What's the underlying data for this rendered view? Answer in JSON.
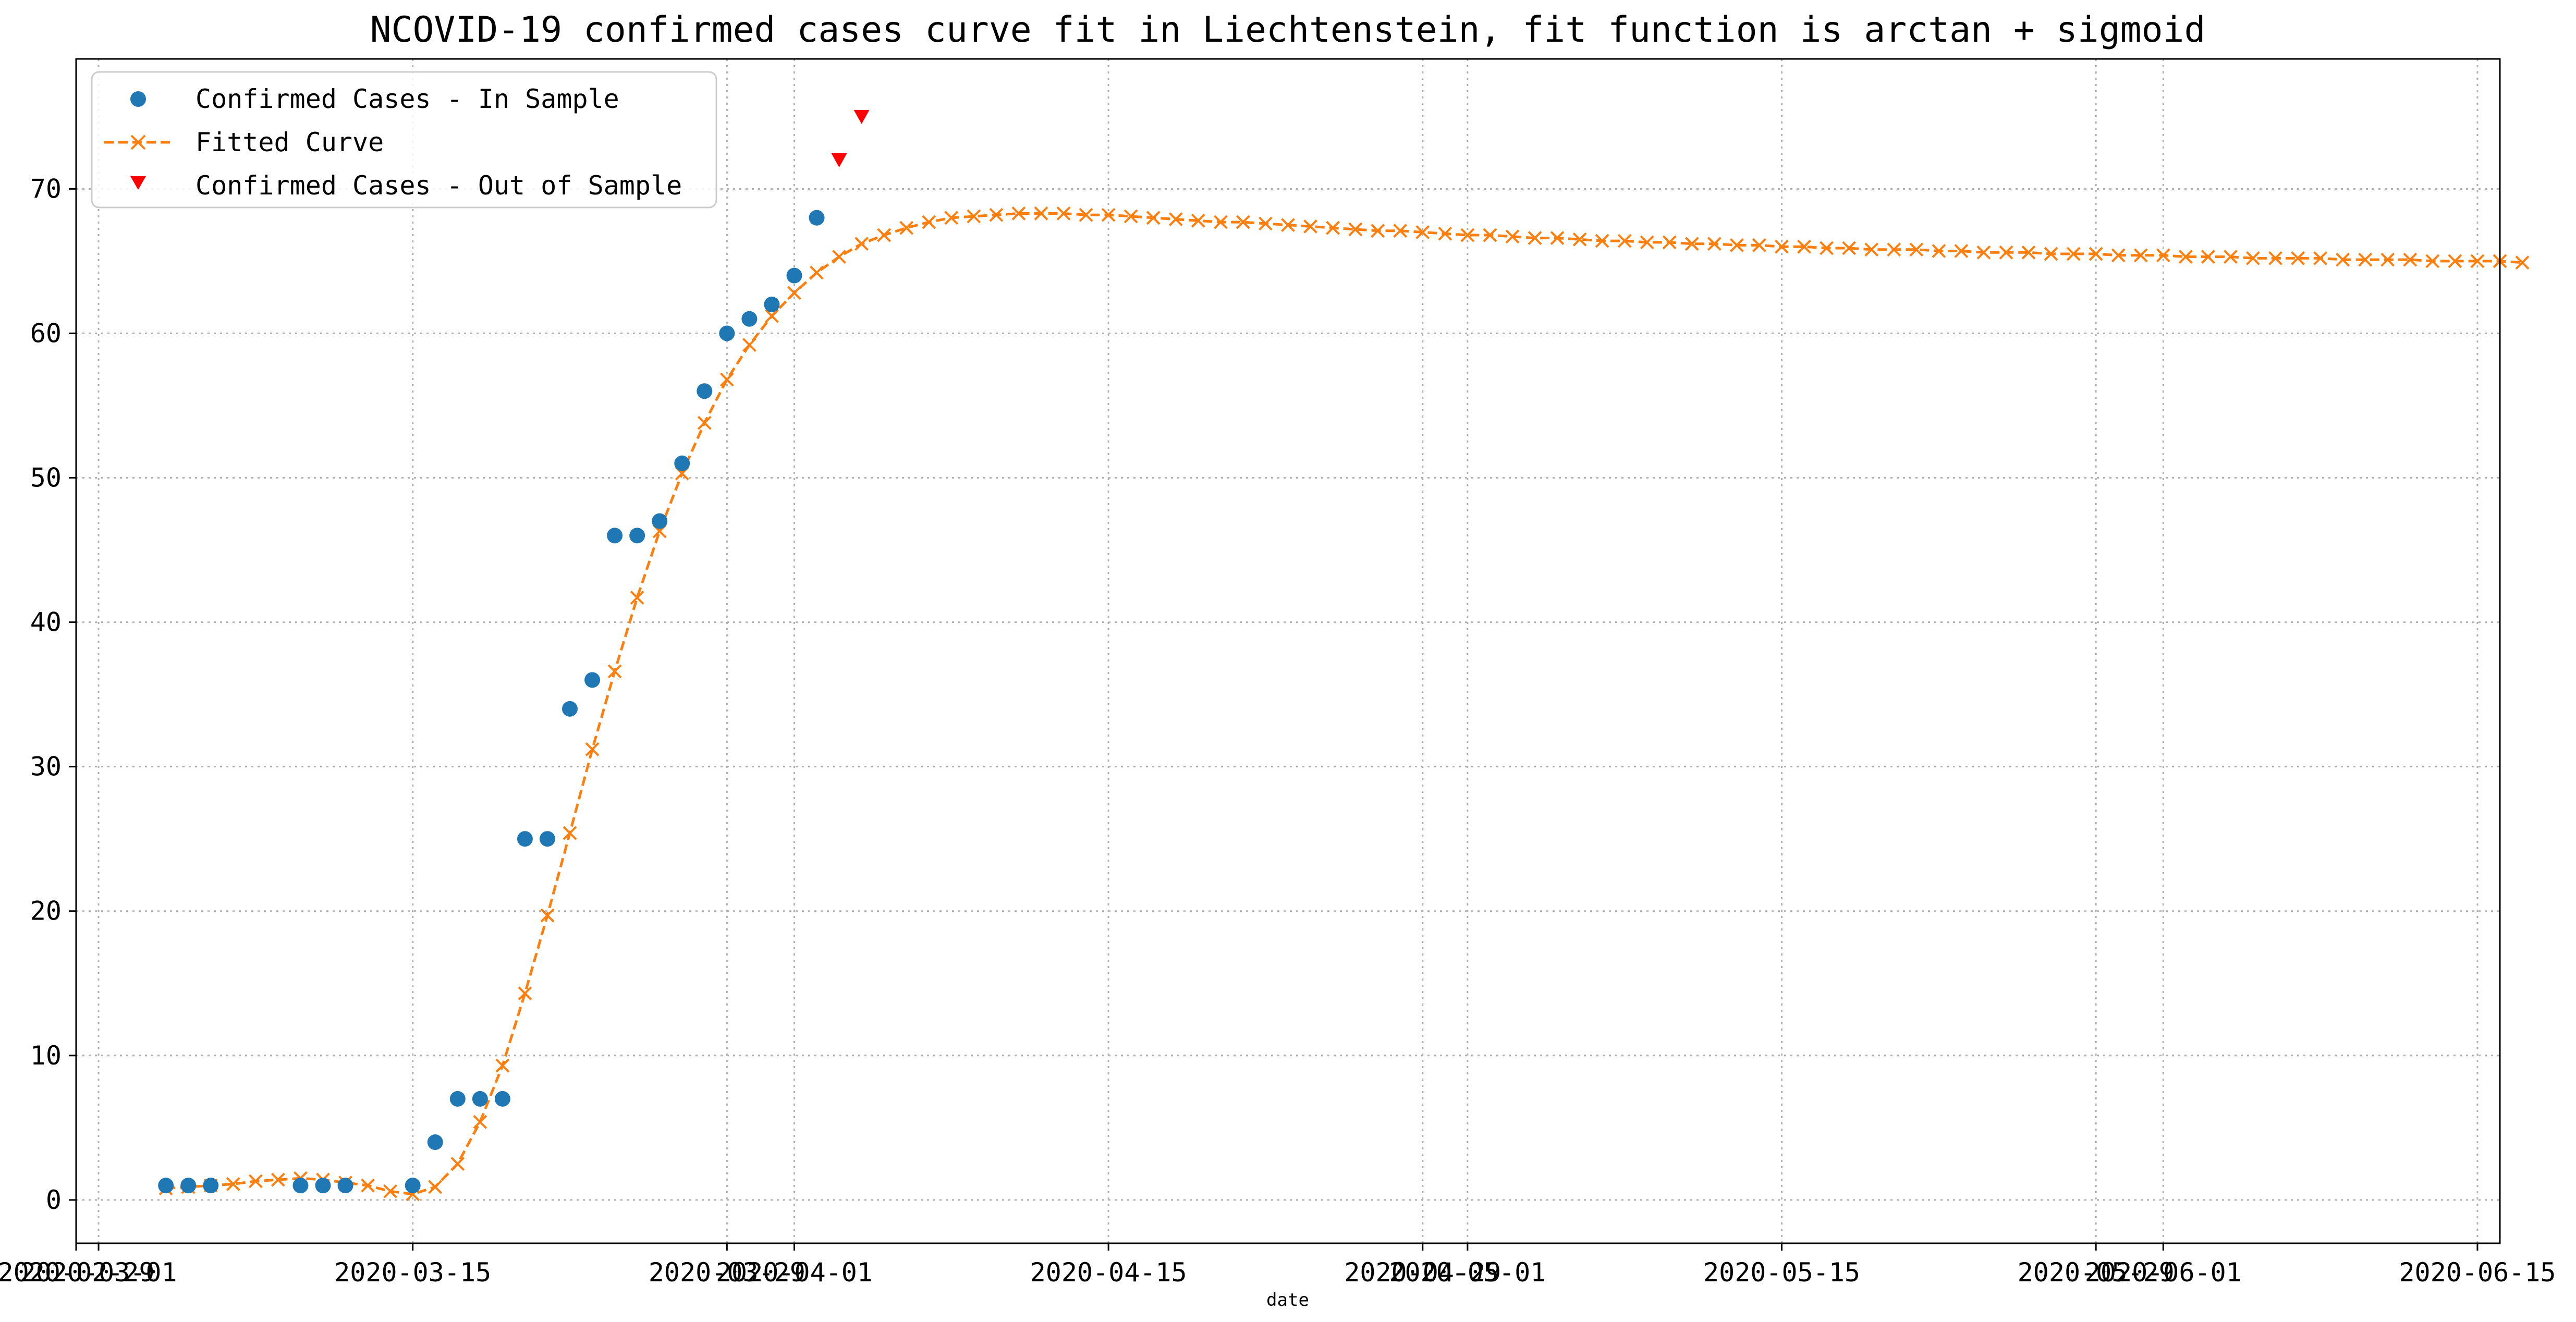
{
  "chart_data": {
    "type": "line",
    "title": "NCOVID-19 confirmed cases curve fit in Liechtenstein, fit function is arctan + sigmoid",
    "xlabel": "date",
    "ylabel": "",
    "grid": true,
    "legend_position": "top-left",
    "ylim": [
      -3,
      79
    ],
    "xlim": [
      "2020-02-29",
      "2020-06-16"
    ],
    "y_ticks": [
      0,
      10,
      20,
      30,
      40,
      50,
      60,
      70
    ],
    "x_ticks": [
      {
        "date": "2020-02-29",
        "label": "2020-02-29"
      },
      {
        "date": "2020-03-01",
        "label": "2020-03-01"
      },
      {
        "date": "2020-03-15",
        "label": "2020-03-15"
      },
      {
        "date": "2020-03-29",
        "label": "2020-03-29"
      },
      {
        "date": "2020-04-01",
        "label": "2020-04-01"
      },
      {
        "date": "2020-04-15",
        "label": "2020-04-15"
      },
      {
        "date": "2020-04-29",
        "label": "2020-04-29"
      },
      {
        "date": "2020-05-01",
        "label": "2020-05-01"
      },
      {
        "date": "2020-05-15",
        "label": "2020-05-15"
      },
      {
        "date": "2020-05-29",
        "label": "2020-05-29"
      },
      {
        "date": "2020-06-01",
        "label": "2020-06-01"
      },
      {
        "date": "2020-06-15",
        "label": "2020-06-15"
      }
    ],
    "series": [
      {
        "name": "Confirmed Cases - In Sample",
        "style": "scatter",
        "marker": "circle",
        "color": "#1f77b4",
        "points": [
          [
            "2020-03-04",
            1
          ],
          [
            "2020-03-05",
            1
          ],
          [
            "2020-03-06",
            1
          ],
          [
            "2020-03-10",
            1
          ],
          [
            "2020-03-11",
            1
          ],
          [
            "2020-03-12",
            1
          ],
          [
            "2020-03-15",
            1
          ],
          [
            "2020-03-16",
            4
          ],
          [
            "2020-03-17",
            7
          ],
          [
            "2020-03-18",
            7
          ],
          [
            "2020-03-19",
            7
          ],
          [
            "2020-03-20",
            25
          ],
          [
            "2020-03-21",
            25
          ],
          [
            "2020-03-22",
            34
          ],
          [
            "2020-03-23",
            36
          ],
          [
            "2020-03-24",
            46
          ],
          [
            "2020-03-25",
            46
          ],
          [
            "2020-03-26",
            47
          ],
          [
            "2020-03-27",
            51
          ],
          [
            "2020-03-28",
            56
          ],
          [
            "2020-03-29",
            60
          ],
          [
            "2020-03-30",
            61
          ],
          [
            "2020-03-31",
            62
          ],
          [
            "2020-04-01",
            64
          ],
          [
            "2020-04-02",
            68
          ]
        ]
      },
      {
        "name": "Fitted Curve",
        "style": "dashed-line-x-markers",
        "color": "#ff7f0e",
        "start_date": "2020-03-04",
        "step_days": 1,
        "values": [
          0.8,
          0.9,
          1.0,
          1.1,
          1.3,
          1.4,
          1.5,
          1.4,
          1.2,
          1.0,
          0.6,
          0.4,
          0.9,
          2.5,
          5.4,
          9.3,
          14.3,
          19.7,
          25.4,
          31.2,
          36.6,
          41.7,
          46.3,
          50.3,
          53.8,
          56.8,
          59.2,
          61.2,
          62.8,
          64.2,
          65.3,
          66.2,
          66.8,
          67.3,
          67.7,
          68.0,
          68.1,
          68.2,
          68.3,
          68.3,
          68.3,
          68.2,
          68.2,
          68.1,
          68.0,
          67.9,
          67.8,
          67.7,
          67.7,
          67.6,
          67.5,
          67.4,
          67.3,
          67.2,
          67.1,
          67.1,
          67.0,
          66.9,
          66.8,
          66.8,
          66.7,
          66.6,
          66.6,
          66.5,
          66.4,
          66.4,
          66.3,
          66.3,
          66.2,
          66.2,
          66.1,
          66.1,
          66.0,
          66.0,
          65.9,
          65.9,
          65.8,
          65.8,
          65.8,
          65.7,
          65.7,
          65.6,
          65.6,
          65.6,
          65.5,
          65.5,
          65.5,
          65.4,
          65.4,
          65.4,
          65.3,
          65.3,
          65.3,
          65.2,
          65.2,
          65.2,
          65.2,
          65.1,
          65.1,
          65.1,
          65.1,
          65.0,
          65.0,
          65.0,
          65.0,
          64.9
        ]
      },
      {
        "name": "Confirmed Cases - Out of Sample",
        "style": "scatter",
        "marker": "triangle-down",
        "color": "#ff0000",
        "points": [
          [
            "2020-04-03",
            72
          ],
          [
            "2020-04-04",
            75
          ]
        ]
      }
    ]
  }
}
